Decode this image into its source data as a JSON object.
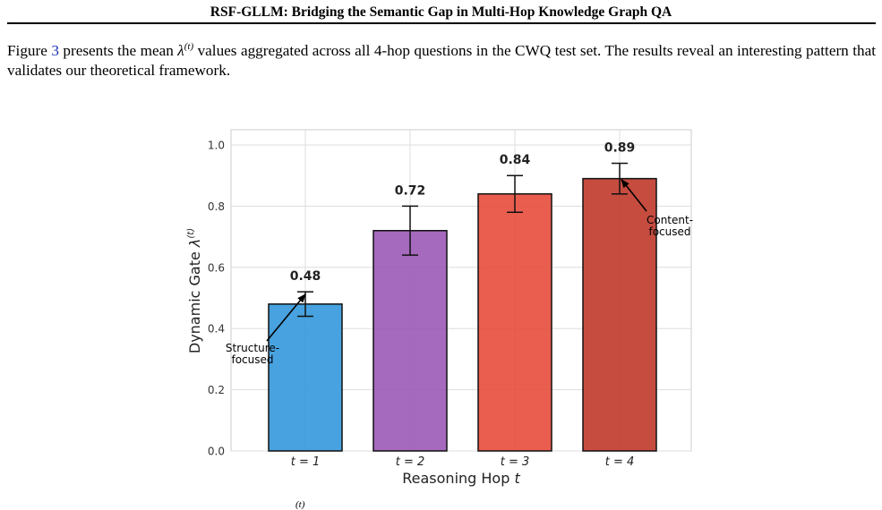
{
  "header": {
    "title": "RSF-GLLM: Bridging the Semantic Gap in Multi-Hop Knowledge Graph QA"
  },
  "paragraph": {
    "before_ref": "Figure ",
    "figure_ref": "3",
    "mid": " presents the mean ",
    "symbol": "λ",
    "superscript": "(t)",
    "after": " values aggregated across all 4-hop questions in the CWQ test set. The results reveal an interesting pattern that validates our theoretical framework."
  },
  "chart_data": {
    "type": "bar",
    "categories": [
      "t = 1",
      "t = 2",
      "t = 3",
      "t = 4"
    ],
    "values": [
      0.48,
      0.72,
      0.84,
      0.89
    ],
    "error_low": [
      0.44,
      0.64,
      0.78,
      0.84
    ],
    "error_high": [
      0.52,
      0.8,
      0.9,
      0.94
    ],
    "value_labels": [
      "0.48",
      "0.72",
      "0.84",
      "0.89"
    ],
    "bar_colors": [
      "#3498db",
      "#9b59b6",
      "#e74c3c",
      "#c0392b"
    ],
    "xlabel_text": "Reasoning Hop ",
    "xlabel_symbol": "t",
    "ylabel_text": "Dynamic Gate ",
    "ylabel_symbol": "λ",
    "ylabel_sup": "(t)",
    "ylim": [
      0,
      1.05
    ],
    "yticks": [
      "0.0",
      "0.2",
      "0.4",
      "0.6",
      "0.8",
      "1.0"
    ],
    "ytick_values": [
      0,
      0.2,
      0.4,
      0.6,
      0.8,
      1.0
    ],
    "grid": true,
    "annotations": [
      {
        "text_lines": [
          "Structure-",
          "focused"
        ],
        "target_category": 0,
        "target_value": 0.48
      },
      {
        "text_lines": [
          "Content-",
          "focused"
        ],
        "target_category": 3,
        "target_value": 0.89
      }
    ]
  },
  "caption_fragment": "(t)"
}
